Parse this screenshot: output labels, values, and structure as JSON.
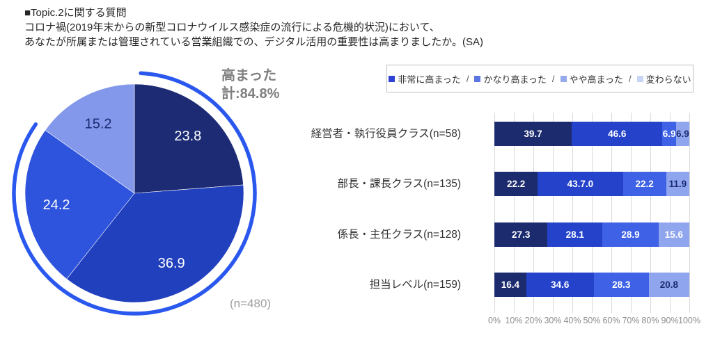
{
  "header": {
    "topic": "■Topic.2に関する質問",
    "question_line1": "コロナ禍(2019年末からの新型コロナウイルス感染症の流行による危機的状況)において、",
    "question_line2": "あなたが所属または管理されている営業組織での、デジタル活用の重要性は高まりましたか。(SA)"
  },
  "chart_data": [
    {
      "type": "pie",
      "labels": [
        "非常に高まった",
        "かなり高まった",
        "やや高まった",
        "変わらない"
      ],
      "values": [
        23.8,
        36.9,
        24.2,
        15.2
      ],
      "value_labels": [
        "23.8",
        "36.9",
        "24.2",
        "15.2"
      ],
      "colors": [
        "#1c2b74",
        "#2140bd",
        "#2e53dc",
        "#8398ea"
      ],
      "label_colors": [
        "#ffffff",
        "#ffffff",
        "#ffffff",
        "#1c2b74"
      ],
      "start_angle_deg": 0,
      "annotation": {
        "line1": "高まった",
        "line2": "計:84.8%"
      },
      "n_label": "(n=480)",
      "highlight_arc": {
        "from_deg": 3,
        "to_deg": 305,
        "color": "#2a58ee",
        "note": "covers the three 高まった slices = 84.8%"
      }
    },
    {
      "type": "stacked_bar_horizontal",
      "xlim": [
        0,
        100
      ],
      "grid": true,
      "axis_ticks": [
        "0%",
        "10%",
        "20%",
        "30%",
        "40%",
        "50%",
        "60%",
        "70%",
        "80%",
        "90%",
        "100%"
      ],
      "legend": {
        "items": [
          {
            "label": "非常に高まった",
            "color": "#2e43d4"
          },
          {
            "label": "かなり高まった",
            "color": "#5b76e2"
          },
          {
            "label": "やや高まった",
            "color": "#96aaee"
          },
          {
            "label": "変わらない",
            "color": "#c9d5f6"
          }
        ],
        "separator": "/"
      },
      "series_colors": [
        "#1b2b6e",
        "#2443ca",
        "#3e61e6",
        "#8fa5ee"
      ],
      "series_label_colors": [
        "#ffffff",
        "#ffffff",
        "#ffffff",
        "#1b2b70"
      ],
      "rows": [
        {
          "category": "経営者・執行役員クラス(n=58)",
          "segments": [
            {
              "value": 39.7,
              "label": "39.7"
            },
            {
              "value": 46.6,
              "label": "46.6"
            },
            {
              "value": 6.9,
              "label": "6.9"
            },
            {
              "value": 6.9,
              "label": "6.9"
            }
          ]
        },
        {
          "category": "部長・課長クラス(n=135)",
          "segments": [
            {
              "value": 22.2,
              "label": "22.2"
            },
            {
              "value": 43.7,
              "label": "43.7.0"
            },
            {
              "value": 22.2,
              "label": "22.2"
            },
            {
              "value": 11.9,
              "label": "11.9"
            }
          ]
        },
        {
          "category": "係長・主任クラス(n=128)",
          "segments": [
            {
              "value": 27.3,
              "label": "27.3"
            },
            {
              "value": 28.1,
              "label": "28.1"
            },
            {
              "value": 28.9,
              "label": "28.9"
            },
            {
              "value": 15.6,
              "label": "15.6",
              "label_color": "#ffffff"
            }
          ]
        },
        {
          "category": "担当レベル(n=159)",
          "segments": [
            {
              "value": 16.4,
              "label": "16.4"
            },
            {
              "value": 34.6,
              "label": "34.6"
            },
            {
              "value": 28.3,
              "label": "28.3"
            },
            {
              "value": 20.8,
              "label": "20.8"
            }
          ]
        }
      ]
    }
  ]
}
